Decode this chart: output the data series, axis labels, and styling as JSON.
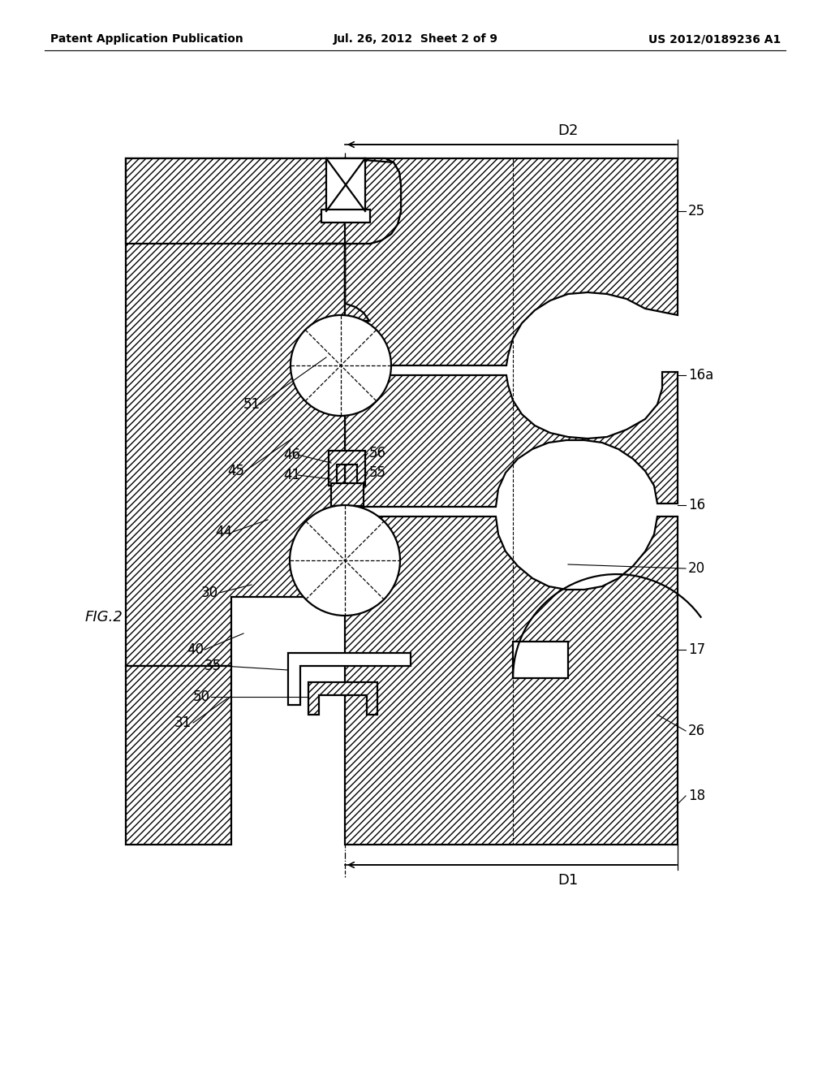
{
  "bg": "#ffffff",
  "lc": "#000000",
  "header_left": "Patent Application Publication",
  "header_center": "Jul. 26, 2012  Sheet 2 of 9",
  "header_right": "US 2012/0189236 A1",
  "fig_label": "FIG.2",
  "D1_label": "D1",
  "D2_label": "D2",
  "hatch": "////",
  "hatch_dense": "////",
  "lw_main": 1.6,
  "lw_thin": 0.9,
  "lw_dim": 1.2,
  "label_fs": 12,
  "header_fs": 10,
  "dim_fs": 13,
  "figfont": "DejaVu Sans"
}
